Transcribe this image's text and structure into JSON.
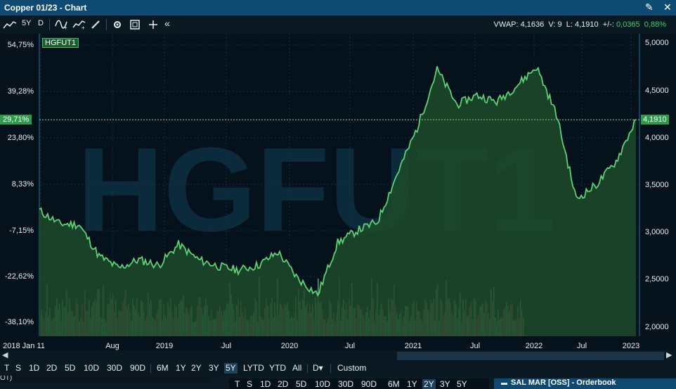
{
  "window": {
    "title": "Copper 01/23 - Chart"
  },
  "toolbar": {
    "period": "5Y",
    "interval": "D",
    "collapse": "«"
  },
  "quote": {
    "vwap_label": "VWAP:",
    "vwap": "4,1636",
    "v_label": "V:",
    "v": "9",
    "l_label": "L:",
    "l": "4,1910",
    "chg_label": "+/-:",
    "chg": "0,0365",
    "chg_pct": "0,88%"
  },
  "chart": {
    "symbol_tag": "HGFUT1",
    "watermark": "HGFUT1",
    "left_axis": [
      "54,75%",
      "39,28%",
      "23,80%",
      "8,33%",
      "-7,15%",
      "-22,62%",
      "-38,10%"
    ],
    "right_axis": [
      "5,0000",
      "4,5000",
      "4,0000",
      "3,5000",
      "3,0000",
      "2,5000",
      "2,0000"
    ],
    "current_pct": "29,71%",
    "current_price": "4,1910",
    "x_labels": [
      "2018 Jan 11",
      "Aug",
      "2019",
      "Jul",
      "2020",
      "Jul",
      "2021",
      "Jul",
      "2022",
      "Jul",
      "2023"
    ],
    "colors": {
      "line": "#5cd276",
      "fill": "#1d4b2c",
      "up_vol": "#7cc487",
      "down_vol": "#c87070",
      "tag": "#2e9a4c"
    }
  },
  "chart_data": {
    "type": "area",
    "symbol": "HGFUT1",
    "x": [
      "2018-01",
      "2018-03",
      "2018-05",
      "2018-07",
      "2018-09",
      "2018-11",
      "2019-01",
      "2019-03",
      "2019-05",
      "2019-07",
      "2019-09",
      "2019-11",
      "2020-01",
      "2020-03",
      "2020-05",
      "2020-07",
      "2020-09",
      "2020-11",
      "2021-01",
      "2021-03",
      "2021-05",
      "2021-07",
      "2021-09",
      "2021-11",
      "2022-01",
      "2022-03",
      "2022-05",
      "2022-07",
      "2022-09",
      "2022-11",
      "2023-01"
    ],
    "y": [
      3.23,
      3.09,
      3.08,
      2.75,
      2.62,
      2.71,
      2.65,
      2.87,
      2.71,
      2.64,
      2.6,
      2.65,
      2.79,
      2.51,
      2.34,
      2.89,
      3.02,
      3.11,
      3.62,
      4.1,
      4.72,
      4.35,
      4.45,
      4.38,
      4.55,
      4.75,
      4.25,
      3.35,
      3.5,
      3.75,
      4.19
    ],
    "ylim": [
      1.9,
      5.1
    ],
    "volume_y": "shown as red/green bars at bottom, relative"
  },
  "scroll": {
    "left_arrow": "◀",
    "right_arrow": "▶"
  },
  "ranges": {
    "items": [
      "T",
      "S",
      "1D",
      "2D",
      "5D",
      "10D",
      "30D",
      "90D",
      "6M",
      "1Y",
      "2Y",
      "3Y",
      "5Y",
      "LYTD",
      "YTD",
      "All",
      "D▾",
      "Custom"
    ],
    "active": "5Y"
  },
  "bottom": {
    "row_fragment": "OT)",
    "ranges2": [
      "T",
      "S",
      "1D",
      "2D",
      "5D",
      "10D",
      "30D",
      "90D",
      "6M",
      "1Y",
      "2Y",
      "3Y",
      "5Y"
    ],
    "active2": "2Y",
    "orderbook_title": "SAL MAR [OSS] - Orderbook"
  }
}
